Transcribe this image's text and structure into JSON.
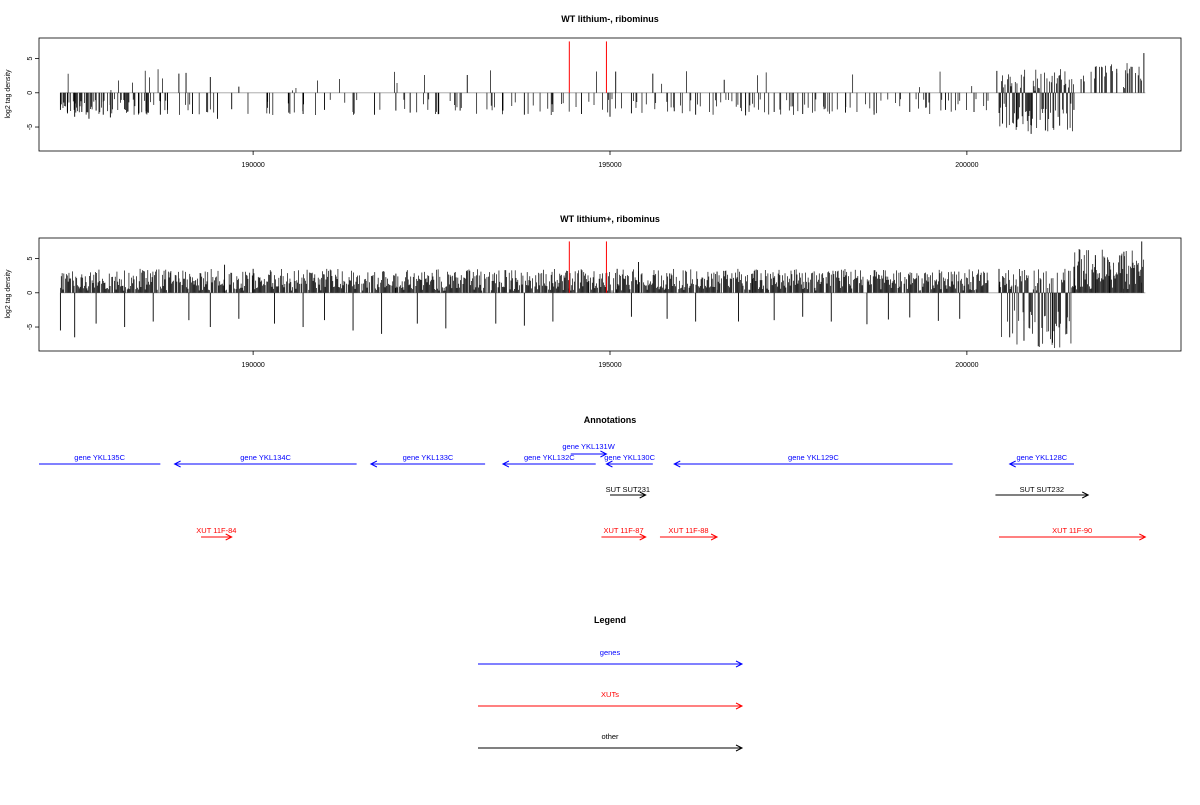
{
  "colors": {
    "gene": "#0000ff",
    "xut": "#ff0000",
    "other": "#000000",
    "highlight": "#ff0000",
    "axis": "#000000",
    "baseline": "#a0a0a0"
  },
  "chart_data": [
    {
      "type": "bar",
      "title": "WT lithium-, ribominus",
      "ylabel": "log2 tag density",
      "xlim": [
        187000,
        203000
      ],
      "ylim": [
        -8.5,
        8
      ],
      "y_ticks": [
        "5",
        "0",
        "-5"
      ],
      "y_tick_values": [
        5,
        0,
        -5
      ],
      "x_ticks": [
        "190000",
        "195000",
        "200000"
      ],
      "x_tick_values": [
        190000,
        195000,
        200000
      ],
      "highlight_x": [
        194430,
        194950
      ],
      "density": "sparse",
      "bars": [
        [
          187300,
          -2.5
        ],
        [
          187400,
          -3
        ],
        [
          187500,
          -3.5
        ],
        [
          187600,
          -2.8
        ],
        [
          187700,
          -3.8
        ],
        [
          187800,
          -2.6
        ],
        [
          187900,
          -3.2
        ],
        [
          188000,
          -3.6
        ],
        [
          188200,
          -2.4
        ],
        [
          188400,
          -3
        ],
        [
          188500,
          -2.7
        ],
        [
          188700,
          -3.2
        ],
        [
          188800,
          -2.5
        ],
        [
          188960,
          2.8
        ],
        [
          189060,
          2.9
        ],
        [
          189150,
          -3.1
        ],
        [
          189350,
          -2.8
        ],
        [
          189400,
          2.3
        ],
        [
          189500,
          -3.8
        ],
        [
          189700,
          -2.4
        ],
        [
          189800,
          0.9
        ],
        [
          190200,
          -2.2
        ],
        [
          190500,
          -2.9
        ],
        [
          190700,
          -3.1
        ],
        [
          191000,
          -2.5
        ],
        [
          191400,
          -2.8
        ],
        [
          191700,
          -3.2
        ],
        [
          192000,
          -2.6
        ],
        [
          192200,
          -2.9
        ],
        [
          192600,
          -3.1
        ],
        [
          192900,
          -2.6
        ],
        [
          193000,
          2.6
        ],
        [
          193500,
          -2.6
        ],
        [
          193800,
          -3.2
        ],
        [
          194200,
          -2.8
        ],
        [
          194600,
          -3.1
        ],
        [
          195000,
          -3.5
        ],
        [
          195080,
          3.1
        ],
        [
          195300,
          -3
        ],
        [
          195600,
          2.8
        ],
        [
          195900,
          -2.7
        ],
        [
          196200,
          -3.2
        ],
        [
          196600,
          1.9
        ],
        [
          196900,
          -3.3
        ],
        [
          197300,
          -2.8
        ],
        [
          197700,
          -3.1
        ],
        [
          198000,
          -2.4
        ],
        [
          198300,
          -2.9
        ],
        [
          198700,
          -3.2
        ],
        [
          199200,
          -2.8
        ],
        [
          199700,
          -2.5
        ],
        [
          200100,
          -2.8
        ],
        [
          200420,
          3.2
        ],
        [
          200500,
          -4.5
        ],
        [
          200700,
          -5
        ],
        [
          200900,
          -6
        ],
        [
          201100,
          -5.5
        ],
        [
          201300,
          -4.8
        ],
        [
          201500,
          -2.5
        ],
        [
          201600,
          2
        ],
        [
          201800,
          3.8
        ],
        [
          202100,
          3.5
        ],
        [
          202300,
          3.8
        ],
        [
          202480,
          5.8
        ]
      ]
    },
    {
      "type": "bar",
      "title": "WT lithium+, ribominus",
      "ylabel": "log2 tag density",
      "xlim": [
        187000,
        203000
      ],
      "ylim": [
        -8.5,
        8
      ],
      "y_ticks": [
        "5",
        "0",
        "-5"
      ],
      "y_tick_values": [
        5,
        0,
        -5
      ],
      "x_ticks": [
        "190000",
        "195000",
        "200000"
      ],
      "x_tick_values": [
        190000,
        195000,
        200000
      ],
      "highlight_x": [
        194430,
        194950
      ],
      "density": "dense",
      "bars": [
        [
          187300,
          -5.5
        ],
        [
          187500,
          -6.5
        ],
        [
          187800,
          -4.5
        ],
        [
          188200,
          -5
        ],
        [
          188600,
          -4.2
        ],
        [
          188960,
          2.1
        ],
        [
          189100,
          -4
        ],
        [
          189400,
          -5
        ],
        [
          189600,
          4.1
        ],
        [
          189800,
          -3.8
        ],
        [
          190000,
          3.5
        ],
        [
          190300,
          -4.5
        ],
        [
          190700,
          -5
        ],
        [
          191000,
          -4
        ],
        [
          191400,
          -5.5
        ],
        [
          191800,
          -6
        ],
        [
          192000,
          2.8
        ],
        [
          192300,
          -4.5
        ],
        [
          192700,
          -5.2
        ],
        [
          193000,
          3.1
        ],
        [
          193400,
          -4.5
        ],
        [
          193800,
          -4.8
        ],
        [
          194200,
          -4.2
        ],
        [
          194700,
          1.5
        ],
        [
          195100,
          3.5
        ],
        [
          195300,
          -3.5
        ],
        [
          195400,
          4.5
        ],
        [
          195800,
          -3.8
        ],
        [
          196200,
          -4.2
        ],
        [
          196500,
          3.1
        ],
        [
          196800,
          -4.2
        ],
        [
          197000,
          2.8
        ],
        [
          197300,
          -4
        ],
        [
          197700,
          -3.5
        ],
        [
          198100,
          -4.2
        ],
        [
          198600,
          -4.6
        ],
        [
          198900,
          -3.9
        ],
        [
          199200,
          -3.6
        ],
        [
          199600,
          -4.1
        ],
        [
          199900,
          -3.8
        ],
        [
          200450,
          3.5
        ],
        [
          200600,
          -6.5
        ],
        [
          200800,
          -7
        ],
        [
          201000,
          -7.8
        ],
        [
          201200,
          -7.3
        ],
        [
          201400,
          -6
        ],
        [
          201500,
          3.8
        ],
        [
          201800,
          5.5
        ],
        [
          202000,
          4.5
        ],
        [
          202200,
          6
        ],
        [
          202450,
          7.5
        ]
      ]
    }
  ],
  "annotations": {
    "title": "Annotations",
    "features": [
      {
        "label": "gene YKL135C",
        "kind": "gene",
        "start": 187000,
        "end": 188700,
        "strand": "none",
        "row": 1
      },
      {
        "label": "gene YKL134C",
        "kind": "gene",
        "start": 188900,
        "end": 191450,
        "strand": "-",
        "row": 1
      },
      {
        "label": "gene YKL133C",
        "kind": "gene",
        "start": 191650,
        "end": 193250,
        "strand": "-",
        "row": 1
      },
      {
        "label": "gene YKL132C",
        "kind": "gene",
        "start": 193500,
        "end": 194800,
        "strand": "-",
        "row": 1
      },
      {
        "label": "gene YKL131W",
        "kind": "gene",
        "start": 194450,
        "end": 194950,
        "strand": "+",
        "row": 0
      },
      {
        "label": "gene YKL130C",
        "kind": "gene",
        "start": 194950,
        "end": 195600,
        "strand": "-",
        "row": 1
      },
      {
        "label": "gene YKL129C",
        "kind": "gene",
        "start": 195900,
        "end": 199800,
        "strand": "-",
        "row": 1
      },
      {
        "label": "gene YKL128C",
        "kind": "gene",
        "start": 200600,
        "end": 201500,
        "strand": "-",
        "row": 1
      },
      {
        "label": "SUT SUT231",
        "kind": "other",
        "start": 195000,
        "end": 195500,
        "strand": "+",
        "row": 2
      },
      {
        "label": "SUT SUT232",
        "kind": "other",
        "start": 200400,
        "end": 201700,
        "strand": "+",
        "row": 2
      },
      {
        "label": "XUT 11F-84",
        "kind": "xut",
        "start": 189270,
        "end": 189700,
        "strand": "+",
        "row": 3
      },
      {
        "label": "XUT 11F-87",
        "kind": "xut",
        "start": 194880,
        "end": 195500,
        "strand": "+",
        "row": 3
      },
      {
        "label": "XUT 11F-88",
        "kind": "xut",
        "start": 195700,
        "end": 196500,
        "strand": "+",
        "row": 3
      },
      {
        "label": "XUT 11F-90",
        "kind": "xut",
        "start": 200450,
        "end": 202500,
        "strand": "+",
        "row": 3
      }
    ]
  },
  "legend": {
    "title": "Legend",
    "items": [
      {
        "label": "genes",
        "kind": "gene"
      },
      {
        "label": "XUTs",
        "kind": "xut"
      },
      {
        "label": "other",
        "kind": "other"
      }
    ]
  }
}
